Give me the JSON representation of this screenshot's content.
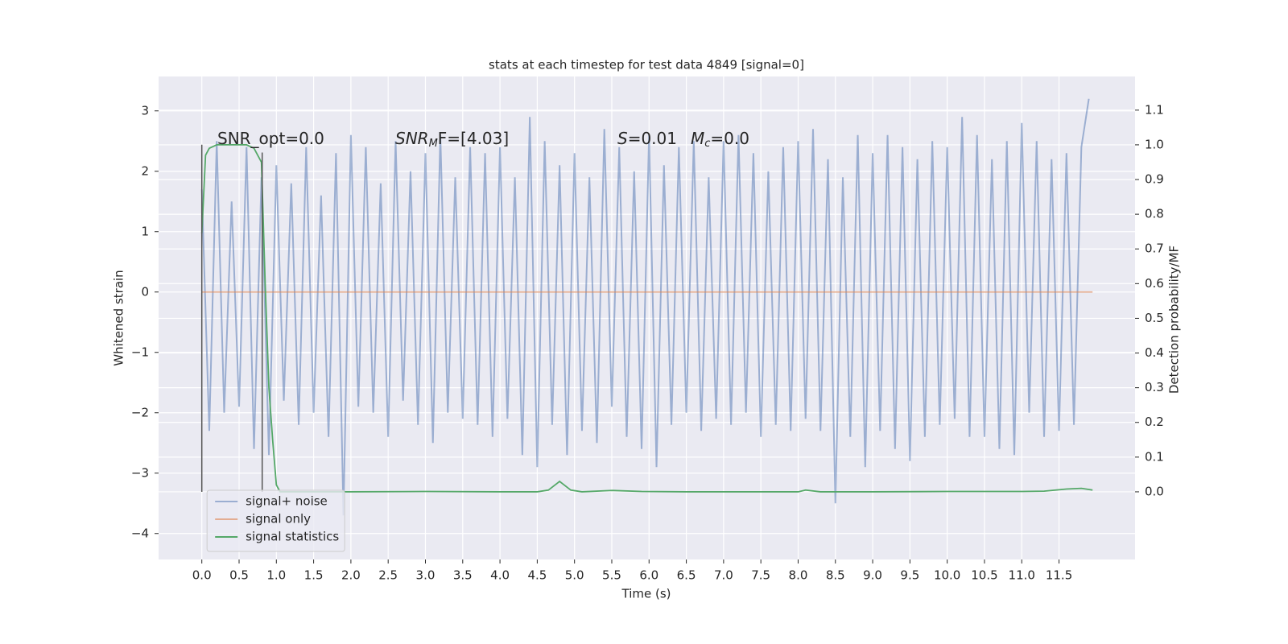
{
  "chart_data": {
    "type": "line",
    "title": "stats at each timestep for test data 4849 [signal=0]",
    "xlabel": "Time (s)",
    "ylabel": "Whitened strain",
    "y2label": "Detection probability/MF",
    "annotations": [
      {
        "parts": [
          "SNR_opt=0.0"
        ]
      },
      {
        "parts": [
          "SNR",
          "M",
          "F=[4.03]"
        ]
      },
      {
        "parts": [
          "S",
          "=0.01"
        ]
      },
      {
        "parts": [
          "M",
          "c",
          "=0.0"
        ]
      }
    ],
    "xlim": [
      -0.58,
      12.52
    ],
    "ylim": [
      -4.43,
      3.57
    ],
    "y2lim": [
      -0.195,
      1.197
    ],
    "xticks": [
      {
        "value": 0,
        "label": "0.0"
      },
      0.5,
      {
        "value": 1,
        "label": "1.0"
      },
      1.5,
      {
        "value": 2,
        "label": "2.0"
      },
      2.5,
      {
        "value": 3,
        "label": "3.0"
      },
      3.5,
      {
        "value": 4,
        "label": "4.0"
      },
      4.5,
      {
        "value": 5,
        "label": "5.0"
      },
      5.5,
      {
        "value": 6,
        "label": "6.0"
      },
      6.5,
      {
        "value": 7,
        "label": "7.0"
      },
      7.5,
      {
        "value": 8,
        "label": "8.0"
      },
      8.5,
      {
        "value": 9,
        "label": "9.0"
      },
      9.5,
      {
        "value": 10,
        "label": "10.0"
      },
      10.5,
      {
        "value": 11,
        "label": "11.0"
      },
      11.5
    ],
    "yticks": [
      {
        "value": -4,
        "label": "−4"
      },
      {
        "value": -3,
        "label": "−3"
      },
      {
        "value": -2,
        "label": "−2"
      },
      {
        "value": -1,
        "label": "−1"
      },
      0,
      1,
      2,
      3
    ],
    "y2ticks": [
      {
        "value": 0,
        "label": "0.0"
      },
      0.1,
      0.2,
      0.3,
      0.4,
      0.5,
      0.6,
      0.7,
      0.8,
      0.9,
      {
        "value": 1,
        "label": "1.0"
      },
      1.1
    ],
    "grid": true,
    "legend": "lower left",
    "vlines": [
      {
        "x": 0,
        "ymin": -3.31,
        "ymax": 2.44,
        "color": "#555555"
      },
      {
        "x": 0.81,
        "ymin": -3.31,
        "ymax": 2.31,
        "color": "#555555"
      }
    ],
    "series": [
      {
        "name": "signal+ noise",
        "color": "#4c72b0",
        "opacity": 0.5,
        "x": [
          0,
          0.1,
          0.2,
          0.3,
          0.4,
          0.5,
          0.6,
          0.7,
          0.8,
          0.9,
          1,
          1.1,
          1.2,
          1.3,
          1.4,
          1.5,
          1.6,
          1.7,
          1.8,
          1.9,
          2,
          2.1,
          2.2,
          2.3,
          2.4,
          2.5,
          2.6,
          2.7,
          2.8,
          2.9,
          3,
          3.1,
          3.2,
          3.3,
          3.4,
          3.5,
          3.6,
          3.7,
          3.8,
          3.9,
          4,
          4.1,
          4.2,
          4.3,
          4.4,
          4.5,
          4.6,
          4.7,
          4.8,
          4.9,
          5,
          5.1,
          5.2,
          5.3,
          5.4,
          5.5,
          5.6,
          5.7,
          5.8,
          5.9,
          6,
          6.1,
          6.2,
          6.3,
          6.4,
          6.5,
          6.6,
          6.7,
          6.8,
          6.9,
          7,
          7.1,
          7.2,
          7.3,
          7.4,
          7.5,
          7.6,
          7.7,
          7.8,
          7.9,
          8,
          8.1,
          8.2,
          8.3,
          8.4,
          8.5,
          8.6,
          8.7,
          8.8,
          8.9,
          9,
          9.1,
          9.2,
          9.3,
          9.4,
          9.5,
          9.6,
          9.7,
          9.8,
          9.9,
          10,
          10.1,
          10.2,
          10.3,
          10.4,
          10.5,
          10.6,
          10.7,
          10.8,
          10.9,
          11,
          11.1,
          11.2,
          11.3,
          11.4,
          11.5,
          11.6,
          11.7,
          11.8,
          11.9
        ],
        "values": [
          1.7,
          -2.3,
          2.5,
          -2.0,
          1.5,
          -1.9,
          2.4,
          -2.6,
          1.9,
          -2.7,
          2.1,
          -1.8,
          1.8,
          -2.2,
          2.4,
          -2.0,
          1.6,
          -2.4,
          2.3,
          -3.7,
          2.6,
          -1.9,
          2.4,
          -2.0,
          1.8,
          -2.4,
          2.5,
          -1.8,
          2.0,
          -2.2,
          2.3,
          -2.5,
          2.6,
          -2.0,
          1.9,
          -2.1,
          2.4,
          -2.2,
          2.3,
          -2.4,
          2.4,
          -2.1,
          1.9,
          -2.7,
          2.9,
          -2.9,
          2.5,
          -2.2,
          2.1,
          -2.7,
          2.3,
          -2.3,
          1.9,
          -2.5,
          2.7,
          -1.9,
          2.4,
          -2.4,
          2.0,
          -2.6,
          2.6,
          -2.9,
          2.1,
          -2.2,
          2.4,
          -2.0,
          2.5,
          -2.3,
          1.9,
          -2.1,
          2.5,
          -2.2,
          2.6,
          -2.0,
          2.3,
          -2.4,
          2.0,
          -2.2,
          2.4,
          -2.3,
          2.5,
          -2.1,
          2.7,
          -2.3,
          2.2,
          -3.5,
          1.9,
          -2.4,
          2.6,
          -2.9,
          2.3,
          -2.3,
          2.6,
          -2.6,
          2.4,
          -2.8,
          2.2,
          -2.4,
          2.5,
          -2.2,
          2.4,
          -2.1,
          2.9,
          -2.4,
          2.6,
          -2.4,
          2.2,
          -2.6,
          2.5,
          -2.7,
          2.8,
          -2.0,
          2.5,
          -2.4,
          2.2,
          -2.3,
          2.3,
          -2.2,
          2.4,
          3.2
        ]
      },
      {
        "name": "signal only",
        "color": "#dd8452",
        "opacity": 0.6,
        "x": [
          0,
          11.95
        ],
        "values": [
          0,
          0
        ]
      },
      {
        "name": "signal statistics",
        "color": "#55a868",
        "opacity": 1,
        "axis": "y2",
        "x": [
          0,
          0.05,
          0.1,
          0.2,
          0.3,
          0.4,
          0.5,
          0.6,
          0.7,
          0.8,
          0.85,
          0.9,
          0.95,
          1.0,
          1.05,
          1.5,
          2.0,
          3.0,
          4.0,
          4.5,
          4.65,
          4.8,
          4.95,
          5.1,
          5.5,
          5.9,
          6.5,
          8.0,
          8.1,
          8.3,
          9.0,
          10.0,
          11.0,
          11.3,
          11.6,
          11.8,
          11.95
        ],
        "values": [
          0.745,
          0.97,
          0.99,
          1.0,
          1.0,
          1.0,
          1.0,
          1.0,
          0.99,
          0.95,
          0.6,
          0.3,
          0.15,
          0.02,
          0.0,
          0.0,
          0.0,
          0.001,
          0.0,
          0.0,
          0.005,
          0.03,
          0.005,
          0.0,
          0.004,
          0.001,
          0.0,
          0.0,
          0.005,
          0.0,
          0.0,
          0.001,
          0.001,
          0.002,
          0.008,
          0.01,
          0.005
        ]
      }
    ]
  }
}
